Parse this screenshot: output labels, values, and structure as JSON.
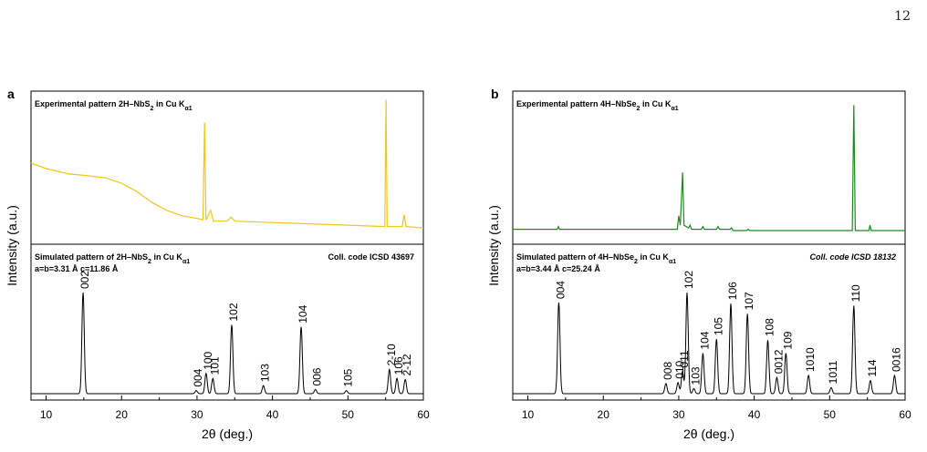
{
  "page_number": "12",
  "chart_data": [
    {
      "type": "line",
      "panel_letter": "a",
      "xlabel": "2θ (deg.)",
      "ylabel": "Intensity (a.u.)",
      "xlim": [
        8,
        60
      ],
      "xticks": [
        10,
        20,
        30,
        40,
        50,
        60
      ],
      "top": {
        "title_parts": [
          {
            "t": "Experimental pattern 2H–NbS"
          },
          {
            "t": "2",
            "sub": true
          },
          {
            "t": " in Cu K"
          },
          {
            "t": "α1",
            "sub": true
          }
        ],
        "color": "#f5c518",
        "points": [
          [
            8,
            0.52
          ],
          [
            10,
            0.48
          ],
          [
            13,
            0.44
          ],
          [
            15,
            0.43
          ],
          [
            18,
            0.41
          ],
          [
            20,
            0.37
          ],
          [
            22,
            0.31
          ],
          [
            24,
            0.23
          ],
          [
            26,
            0.17
          ],
          [
            28,
            0.13
          ],
          [
            30,
            0.11
          ],
          [
            30.8,
            0.1
          ],
          [
            31.0,
            0.82
          ],
          [
            31.2,
            0.1
          ],
          [
            31.8,
            0.17
          ],
          [
            32.2,
            0.09
          ],
          [
            34,
            0.09
          ],
          [
            34.5,
            0.12
          ],
          [
            35,
            0.09
          ],
          [
            40,
            0.08
          ],
          [
            45,
            0.07
          ],
          [
            50,
            0.06
          ],
          [
            54.9,
            0.05
          ],
          [
            55.05,
            0.99
          ],
          [
            55.2,
            0.05
          ],
          [
            57.2,
            0.05
          ],
          [
            57.45,
            0.14
          ],
          [
            57.7,
            0.05
          ],
          [
            60,
            0.04
          ]
        ]
      },
      "bottom": {
        "title_parts": [
          {
            "t": "Simulated pattern of 2H–NbS"
          },
          {
            "t": "2",
            "sub": true
          },
          {
            "t": " in Cu K"
          },
          {
            "t": "α1",
            "sub": true
          }
        ],
        "lattice": "a=b=3.31 Å    c=11.86 Å",
        "coll_code": "Coll. code ICSD 43697",
        "coll_italic": false,
        "peaks": [
          {
            "x": 14.9,
            "h": 1.0,
            "label": "002"
          },
          {
            "x": 29.9,
            "h": 0.03,
            "label": "004"
          },
          {
            "x": 31.2,
            "h": 0.2,
            "label": "100"
          },
          {
            "x": 32.1,
            "h": 0.15,
            "label": "101"
          },
          {
            "x": 34.6,
            "h": 0.68,
            "label": "102"
          },
          {
            "x": 38.8,
            "h": 0.08,
            "label": "103"
          },
          {
            "x": 43.8,
            "h": 0.66,
            "label": "104"
          },
          {
            "x": 45.7,
            "h": 0.04,
            "label": "006"
          },
          {
            "x": 49.8,
            "h": 0.03,
            "label": "105"
          },
          {
            "x": 55.5,
            "h": 0.24,
            "label": "2-10"
          },
          {
            "x": 56.5,
            "h": 0.15,
            "label": "106"
          },
          {
            "x": 57.6,
            "h": 0.14,
            "label": "2-12"
          }
        ]
      }
    },
    {
      "type": "line",
      "panel_letter": "b",
      "xlabel": "2θ (deg.)",
      "ylabel": "Intensity (a.u.)",
      "xlim": [
        8,
        60
      ],
      "xticks": [
        10,
        20,
        30,
        40,
        50,
        60
      ],
      "top": {
        "title_parts": [
          {
            "t": "Experimental pattern 4H–NbSe"
          },
          {
            "t": "2",
            "sub": true
          },
          {
            "t": " in Cu K"
          },
          {
            "t": "α1",
            "sub": true
          }
        ],
        "color": "#1e8a1e",
        "points": [
          [
            8,
            0.03
          ],
          [
            13.9,
            0.03
          ],
          [
            14.05,
            0.05
          ],
          [
            14.2,
            0.03
          ],
          [
            29.8,
            0.03
          ],
          [
            30.0,
            0.13
          ],
          [
            30.2,
            0.06
          ],
          [
            30.5,
            0.45
          ],
          [
            30.7,
            0.06
          ],
          [
            31.3,
            0.04
          ],
          [
            31.5,
            0.06
          ],
          [
            31.7,
            0.03
          ],
          [
            33.0,
            0.03
          ],
          [
            33.2,
            0.05
          ],
          [
            33.4,
            0.03
          ],
          [
            35.0,
            0.03
          ],
          [
            35.2,
            0.05
          ],
          [
            35.4,
            0.03
          ],
          [
            36.8,
            0.03
          ],
          [
            37.0,
            0.04
          ],
          [
            37.2,
            0.02
          ],
          [
            39,
            0.02
          ],
          [
            39.2,
            0.03
          ],
          [
            39.4,
            0.02
          ],
          [
            53.0,
            0.02
          ],
          [
            53.2,
            0.95
          ],
          [
            53.4,
            0.02
          ],
          [
            55.2,
            0.02
          ],
          [
            55.35,
            0.06
          ],
          [
            55.5,
            0.02
          ],
          [
            60,
            0.02
          ]
        ]
      },
      "bottom": {
        "title_parts": [
          {
            "t": "Simulated pattern of 4H–NbSe"
          },
          {
            "t": "2",
            "sub": true
          },
          {
            "t": " in Cu K"
          },
          {
            "t": "α1",
            "sub": true
          }
        ],
        "lattice": "a=b=3.44 Å    c=25.24 Å",
        "coll_code": "Coll. code ICSD 18132",
        "coll_italic": true,
        "peaks": [
          {
            "x": 14.1,
            "h": 0.9,
            "label": "004"
          },
          {
            "x": 28.3,
            "h": 0.1,
            "label": "008"
          },
          {
            "x": 29.9,
            "h": 0.11,
            "label": "010"
          },
          {
            "x": 30.5,
            "h": 0.22,
            "label": "011"
          },
          {
            "x": 31.1,
            "h": 1.0,
            "label": "102"
          },
          {
            "x": 32.0,
            "h": 0.05,
            "label": "103"
          },
          {
            "x": 33.2,
            "h": 0.4,
            "label": "104"
          },
          {
            "x": 35.0,
            "h": 0.54,
            "label": "105"
          },
          {
            "x": 36.9,
            "h": 0.89,
            "label": "106"
          },
          {
            "x": 39.1,
            "h": 0.79,
            "label": "107"
          },
          {
            "x": 41.8,
            "h": 0.53,
            "label": "108"
          },
          {
            "x": 43.0,
            "h": 0.16,
            "label": "0012"
          },
          {
            "x": 44.2,
            "h": 0.4,
            "label": "109"
          },
          {
            "x": 47.2,
            "h": 0.18,
            "label": "1010"
          },
          {
            "x": 50.2,
            "h": 0.06,
            "label": "1011"
          },
          {
            "x": 53.2,
            "h": 0.87,
            "label": "110"
          },
          {
            "x": 55.4,
            "h": 0.13,
            "label": "114"
          },
          {
            "x": 58.6,
            "h": 0.18,
            "label": "0016"
          }
        ]
      }
    }
  ]
}
